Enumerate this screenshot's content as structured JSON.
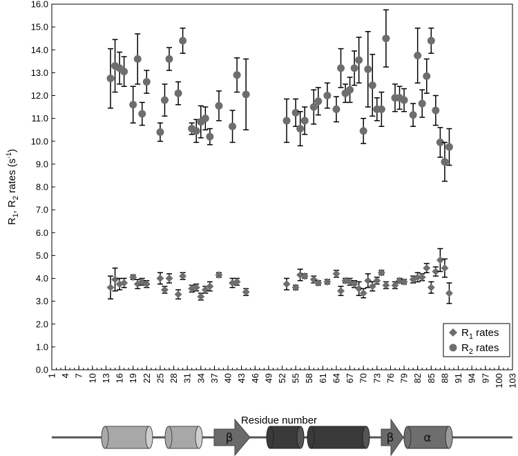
{
  "chart_data": {
    "type": "scatter",
    "xlabel": "Residue number",
    "ylabel_parts": {
      "r": "R",
      "sub1": "1",
      "mid": ", R",
      "sub2": "2",
      "rates": " rates (s",
      "sup": "-1",
      "close": ")"
    },
    "xlim": [
      1,
      103
    ],
    "ylim": [
      0,
      16
    ],
    "x_ticks": [
      1,
      4,
      7,
      10,
      13,
      16,
      19,
      22,
      25,
      28,
      31,
      34,
      37,
      40,
      43,
      46,
      49,
      52,
      55,
      58,
      61,
      64,
      67,
      70,
      73,
      76,
      79,
      82,
      85,
      88,
      91,
      94,
      97,
      100,
      103
    ],
    "y_ticks": [
      "0.0",
      "1.0",
      "2.0",
      "3.0",
      "4.0",
      "5.0",
      "6.0",
      "7.0",
      "8.0",
      "9.0",
      "10.0",
      "11.0",
      "12.0",
      "13.0",
      "14.0",
      "15.0",
      "16.0"
    ],
    "grid": false,
    "legend_position": "bottom-right",
    "series": [
      {
        "name": "R1 rates",
        "legend_main": "R",
        "legend_sub": "1",
        "legend_rest": " rates",
        "marker": "diamond",
        "color": "#6e6e6e",
        "points": [
          {
            "x": 14,
            "y": 3.6,
            "err": 0.5
          },
          {
            "x": 15,
            "y": 3.95,
            "err": 0.5
          },
          {
            "x": 16,
            "y": 3.75,
            "err": 0.25
          },
          {
            "x": 17,
            "y": 3.8,
            "err": 0.2
          },
          {
            "x": 19,
            "y": 4.05,
            "err": 0.1
          },
          {
            "x": 20,
            "y": 3.75,
            "err": 0.2
          },
          {
            "x": 21,
            "y": 3.85,
            "err": 0.15
          },
          {
            "x": 22,
            "y": 3.75,
            "err": 0.15
          },
          {
            "x": 25,
            "y": 4.0,
            "err": 0.25
          },
          {
            "x": 26,
            "y": 3.5,
            "err": 0.15
          },
          {
            "x": 27,
            "y": 4.0,
            "err": 0.2
          },
          {
            "x": 29,
            "y": 3.3,
            "err": 0.2
          },
          {
            "x": 30,
            "y": 4.1,
            "err": 0.15
          },
          {
            "x": 32,
            "y": 3.55,
            "err": 0.15
          },
          {
            "x": 33,
            "y": 3.6,
            "err": 0.15
          },
          {
            "x": 34,
            "y": 3.2,
            "err": 0.15
          },
          {
            "x": 35,
            "y": 3.5,
            "err": 0.15
          },
          {
            "x": 36,
            "y": 3.65,
            "err": 0.2
          },
          {
            "x": 38,
            "y": 4.15,
            "err": 0.1
          },
          {
            "x": 41,
            "y": 3.8,
            "err": 0.2
          },
          {
            "x": 42,
            "y": 3.85,
            "err": 0.15
          },
          {
            "x": 44,
            "y": 3.4,
            "err": 0.15
          },
          {
            "x": 53,
            "y": 3.75,
            "err": 0.25
          },
          {
            "x": 55,
            "y": 3.6,
            "err": 0.1
          },
          {
            "x": 56,
            "y": 4.15,
            "err": 0.25
          },
          {
            "x": 57,
            "y": 4.1,
            "err": 0.1
          },
          {
            "x": 59,
            "y": 3.95,
            "err": 0.15
          },
          {
            "x": 60,
            "y": 3.8,
            "err": 0.1
          },
          {
            "x": 62,
            "y": 3.85,
            "err": 0.1
          },
          {
            "x": 64,
            "y": 4.2,
            "err": 0.15
          },
          {
            "x": 65,
            "y": 3.45,
            "err": 0.2
          },
          {
            "x": 66,
            "y": 3.9,
            "err": 0.1
          },
          {
            "x": 67,
            "y": 3.85,
            "err": 0.15
          },
          {
            "x": 68,
            "y": 3.75,
            "err": 0.15
          },
          {
            "x": 69,
            "y": 3.55,
            "err": 0.3
          },
          {
            "x": 70,
            "y": 3.35,
            "err": 0.2
          },
          {
            "x": 71,
            "y": 3.9,
            "err": 0.3
          },
          {
            "x": 72,
            "y": 3.65,
            "err": 0.2
          },
          {
            "x": 73,
            "y": 3.9,
            "err": 0.15
          },
          {
            "x": 74,
            "y": 4.25,
            "err": 0.1
          },
          {
            "x": 75,
            "y": 3.7,
            "err": 0.15
          },
          {
            "x": 77,
            "y": 3.7,
            "err": 0.15
          },
          {
            "x": 78,
            "y": 3.9,
            "err": 0.1
          },
          {
            "x": 79,
            "y": 3.85,
            "err": 0.1
          },
          {
            "x": 81,
            "y": 3.95,
            "err": 0.15
          },
          {
            "x": 82,
            "y": 4.05,
            "err": 0.2
          },
          {
            "x": 83,
            "y": 4.05,
            "err": 0.15
          },
          {
            "x": 84,
            "y": 4.45,
            "err": 0.2
          },
          {
            "x": 85,
            "y": 3.6,
            "err": 0.25
          },
          {
            "x": 86,
            "y": 4.3,
            "err": 0.2
          },
          {
            "x": 87,
            "y": 4.8,
            "err": 0.5
          },
          {
            "x": 88,
            "y": 4.45,
            "err": 0.4
          },
          {
            "x": 89,
            "y": 3.35,
            "err": 0.45
          }
        ]
      },
      {
        "name": "R2 rates",
        "legend_main": "R",
        "legend_sub": "2",
        "legend_rest": " rates",
        "marker": "circle",
        "color": "#6e6e6e",
        "points": [
          {
            "x": 14,
            "y": 12.75,
            "err": 1.3
          },
          {
            "x": 15,
            "y": 13.3,
            "err": 1.15
          },
          {
            "x": 16,
            "y": 13.2,
            "err": 0.7
          },
          {
            "x": 17,
            "y": 13.05,
            "err": 0.65
          },
          {
            "x": 19,
            "y": 11.6,
            "err": 0.8
          },
          {
            "x": 20,
            "y": 13.6,
            "err": 1.1
          },
          {
            "x": 21,
            "y": 11.2,
            "err": 0.5
          },
          {
            "x": 22,
            "y": 12.6,
            "err": 0.5
          },
          {
            "x": 25,
            "y": 10.4,
            "err": 0.4
          },
          {
            "x": 26,
            "y": 11.8,
            "err": 0.7
          },
          {
            "x": 27,
            "y": 13.6,
            "err": 0.5
          },
          {
            "x": 29,
            "y": 12.1,
            "err": 0.5
          },
          {
            "x": 30,
            "y": 14.4,
            "err": 0.55
          },
          {
            "x": 32,
            "y": 10.55,
            "err": 0.25
          },
          {
            "x": 33,
            "y": 10.45,
            "err": 0.5
          },
          {
            "x": 34,
            "y": 10.85,
            "err": 0.7
          },
          {
            "x": 35,
            "y": 11.0,
            "err": 0.5
          },
          {
            "x": 36,
            "y": 10.2,
            "err": 0.35
          },
          {
            "x": 38,
            "y": 11.55,
            "err": 0.65
          },
          {
            "x": 41,
            "y": 10.65,
            "err": 0.7
          },
          {
            "x": 42,
            "y": 12.9,
            "err": 0.75
          },
          {
            "x": 44,
            "y": 12.05,
            "err": 1.55
          },
          {
            "x": 53,
            "y": 10.9,
            "err": 0.95
          },
          {
            "x": 55,
            "y": 11.25,
            "err": 0.6
          },
          {
            "x": 56,
            "y": 10.55,
            "err": 0.75
          },
          {
            "x": 57,
            "y": 10.9,
            "err": 0.6
          },
          {
            "x": 59,
            "y": 11.5,
            "err": 0.75
          },
          {
            "x": 60,
            "y": 11.75,
            "err": 0.6
          },
          {
            "x": 62,
            "y": 12.0,
            "err": 0.55
          },
          {
            "x": 64,
            "y": 11.4,
            "err": 0.55
          },
          {
            "x": 65,
            "y": 13.2,
            "err": 0.85
          },
          {
            "x": 66,
            "y": 12.1,
            "err": 0.4
          },
          {
            "x": 67,
            "y": 12.25,
            "err": 0.55
          },
          {
            "x": 68,
            "y": 13.2,
            "err": 0.75
          },
          {
            "x": 69,
            "y": 13.55,
            "err": 1.0
          },
          {
            "x": 70,
            "y": 10.45,
            "err": 0.55
          },
          {
            "x": 71,
            "y": 13.15,
            "err": 1.65
          },
          {
            "x": 72,
            "y": 12.45,
            "err": 1.35
          },
          {
            "x": 73,
            "y": 11.4,
            "err": 0.5
          },
          {
            "x": 74,
            "y": 11.4,
            "err": 0.75
          },
          {
            "x": 75,
            "y": 14.5,
            "err": 1.25
          },
          {
            "x": 77,
            "y": 11.9,
            "err": 0.6
          },
          {
            "x": 78,
            "y": 11.9,
            "err": 0.5
          },
          {
            "x": 79,
            "y": 11.8,
            "err": 0.5
          },
          {
            "x": 81,
            "y": 11.15,
            "err": 0.5
          },
          {
            "x": 82,
            "y": 13.75,
            "err": 1.2
          },
          {
            "x": 83,
            "y": 11.65,
            "err": 0.6
          },
          {
            "x": 84,
            "y": 12.85,
            "err": 0.75
          },
          {
            "x": 85,
            "y": 14.4,
            "err": 0.55
          },
          {
            "x": 86,
            "y": 11.35,
            "err": 0.65
          },
          {
            "x": 87,
            "y": 9.95,
            "err": 0.65
          },
          {
            "x": 88,
            "y": 9.1,
            "err": 0.85
          },
          {
            "x": 89,
            "y": 9.75,
            "err": 0.8
          }
        ]
      }
    ]
  },
  "secondary_structure": {
    "line_color": "#555555",
    "elements": [
      {
        "type": "cylinder",
        "label": "",
        "fill": "#a8a8a8",
        "cap": "#cfcfcf"
      },
      {
        "type": "cylinder",
        "label": "",
        "fill": "#a8a8a8",
        "cap": "#cfcfcf"
      },
      {
        "type": "arrow",
        "label": "β",
        "fill": "#6a6a6a"
      },
      {
        "type": "cylinder",
        "label": "",
        "fill": "#3a3a3a",
        "cap": "#555555"
      },
      {
        "type": "cylinder",
        "label": "",
        "fill": "#3a3a3a",
        "cap": "#555555"
      },
      {
        "type": "arrow",
        "label": "β",
        "fill": "#6a6a6a"
      },
      {
        "type": "cylinder",
        "label": "α",
        "fill": "#6e6e6e",
        "cap": "#9a9a9a"
      }
    ]
  }
}
